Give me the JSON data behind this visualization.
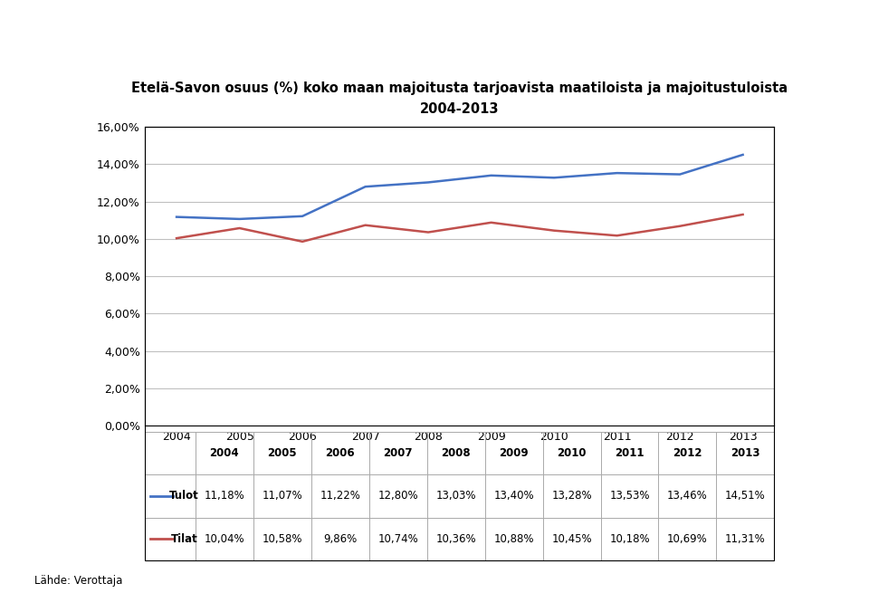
{
  "title_line1": "Etelä-Savon osuus (%) koko maan majoitusta tarjoavista maatiloista ja majoitustuloista",
  "title_line2": "2004-2013",
  "years": [
    2004,
    2005,
    2006,
    2007,
    2008,
    2009,
    2010,
    2011,
    2012,
    2013
  ],
  "tulot": [
    11.18,
    11.07,
    11.22,
    12.8,
    13.03,
    13.4,
    13.28,
    13.53,
    13.46,
    14.51
  ],
  "tilat": [
    10.04,
    10.58,
    9.86,
    10.74,
    10.36,
    10.88,
    10.45,
    10.18,
    10.69,
    11.31
  ],
  "tulot_labels": [
    "11,18%",
    "11,07%",
    "11,22%",
    "12,80%",
    "13,03%",
    "13,40%",
    "13,28%",
    "13,53%",
    "13,46%",
    "14,51%"
  ],
  "tilat_labels": [
    "10,04%",
    "10,58%",
    "9,86%",
    "10,74%",
    "10,36%",
    "10,88%",
    "10,45%",
    "10,18%",
    "10,69%",
    "11,31%"
  ],
  "tulot_color": "#4472C4",
  "tilat_color": "#C0504D",
  "ylim_min": 0,
  "ylim_max": 16,
  "yticks": [
    0,
    2,
    4,
    6,
    8,
    10,
    12,
    14,
    16
  ],
  "ytick_labels": [
    "0,00%",
    "2,00%",
    "4,00%",
    "6,00%",
    "8,00%",
    "10,00%",
    "12,00%",
    "14,00%",
    "16,00%"
  ],
  "legend_tulot": "Tulot",
  "legend_tilat": "Tilat",
  "source": "Lähde: Verottaja",
  "bg_color": "#FFFFFF",
  "grid_color": "#C0C0C0",
  "border_color": "#000000",
  "title_fontsize": 10.5,
  "tick_fontsize": 9,
  "table_fontsize": 8.5,
  "source_fontsize": 8.5,
  "header_bg": "#F2F2F2"
}
